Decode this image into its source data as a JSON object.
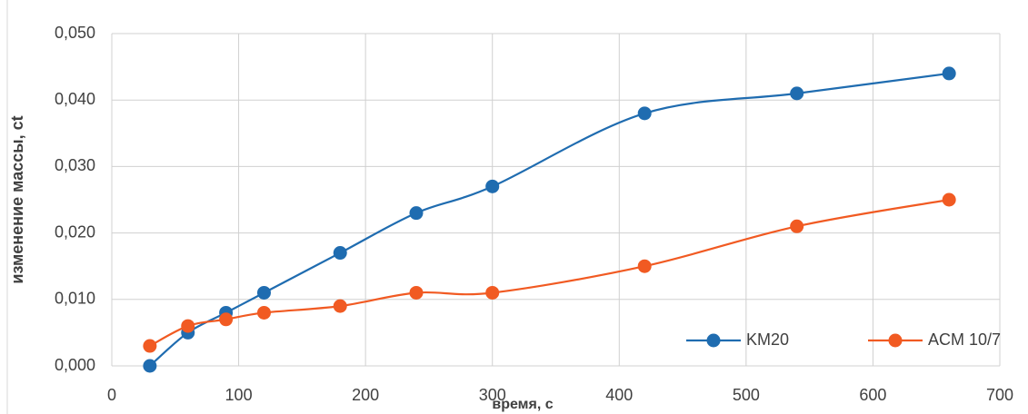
{
  "chart_data": {
    "type": "line",
    "xlabel": "время, с",
    "ylabel": "изменение массы, ct",
    "x": [
      30,
      60,
      90,
      120,
      180,
      240,
      300,
      420,
      540,
      660
    ],
    "series": [
      {
        "name": "KM20",
        "color": "#1f6cb0",
        "values": [
          0,
          0.005,
          0.008,
          0.011,
          0.017,
          0.023,
          0.027,
          0.038,
          0.041,
          0.044
        ]
      },
      {
        "name": "ACM 10/7",
        "color": "#f15a22",
        "values": [
          0.003,
          0.006,
          0.007,
          0.008,
          0.009,
          0.011,
          0.011,
          0.015,
          0.021,
          0.025
        ]
      }
    ],
    "xlim": [
      0,
      700
    ],
    "xticks": [
      0,
      100,
      200,
      300,
      400,
      500,
      600,
      700
    ],
    "ylim": [
      0,
      0.05
    ],
    "yticks": [
      {
        "value": 0,
        "label": "0,000"
      },
      {
        "value": 0.01,
        "label": "0,010"
      },
      {
        "value": 0.02,
        "label": "0,020"
      },
      {
        "value": 0.03,
        "label": "0,030"
      },
      {
        "value": 0.04,
        "label": "0,040"
      },
      {
        "value": 0.05,
        "label": "0,050"
      }
    ],
    "grid": true,
    "smooth": true,
    "legend": "lower right"
  }
}
